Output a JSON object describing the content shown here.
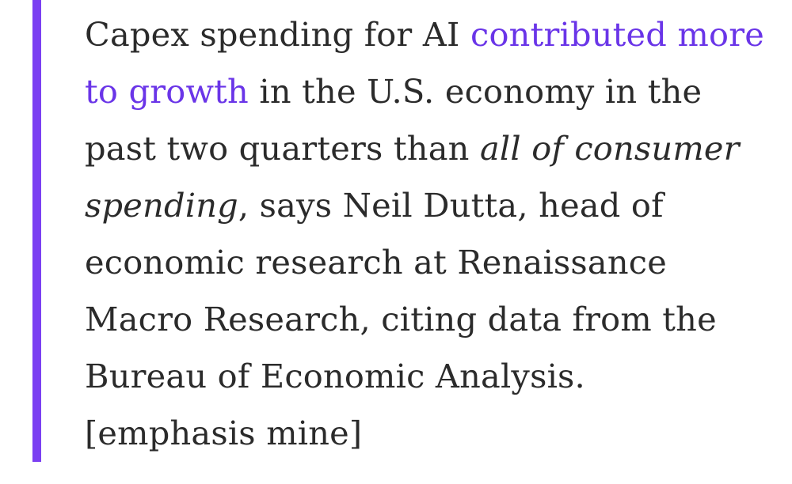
{
  "blockquote": {
    "accent_color": "#7b3ff2",
    "link_color": "#6a35e8",
    "text_color": "#2b2b2b",
    "part1": "Capex spending for AI ",
    "link_text": "contributed more to growth",
    "part2": " in the U.S. economy in the past two quarters than ",
    "emphasis_text": "all of consumer spending",
    "part3": ", says Neil Dutta, head of economic research at Renaissance Macro Research, citing data from the Bureau of Economic Analysis. [emphasis mine]"
  }
}
